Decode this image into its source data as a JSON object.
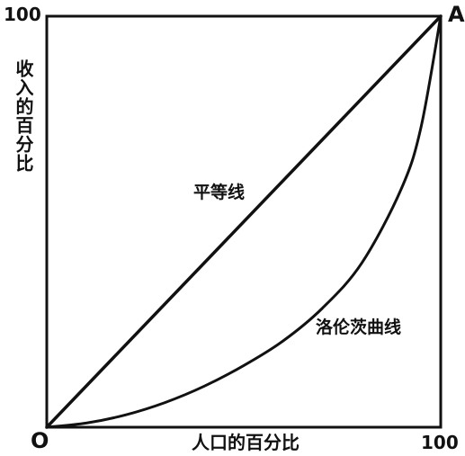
{
  "chart_data": {
    "type": "line",
    "title": "",
    "xlabel": "人口的百分比",
    "ylabel": "收入的百分比",
    "xlim": [
      0,
      100
    ],
    "ylim": [
      0,
      100
    ],
    "xticks": {
      "start": "0",
      "end": "100"
    },
    "yticks": {
      "end": "100"
    },
    "grid": false,
    "points": {
      "origin": "O",
      "corner": "A"
    },
    "series": [
      {
        "name": "平等线",
        "x": [
          0,
          100
        ],
        "y": [
          0,
          100
        ]
      },
      {
        "name": "洛伦茨曲线",
        "x": [
          0,
          10,
          20,
          30,
          40,
          50,
          60,
          70,
          80,
          90,
          95,
          100
        ],
        "y": [
          0,
          1,
          3,
          6,
          10,
          15,
          21,
          29,
          40,
          58,
          73,
          100
        ]
      }
    ],
    "colors": {
      "line": "#111111",
      "background": "#ffffff"
    }
  }
}
